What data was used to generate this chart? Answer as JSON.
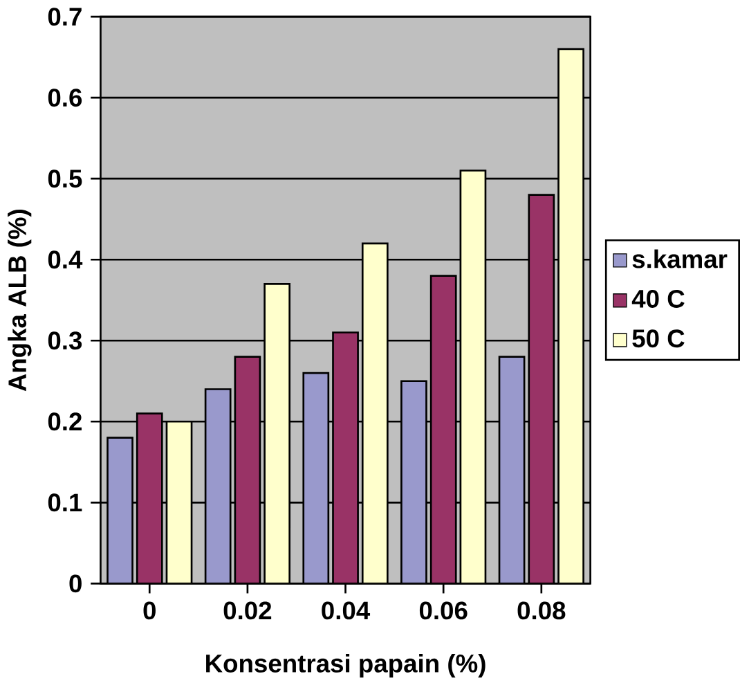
{
  "chart_data": {
    "type": "bar",
    "xlabel": "Konsentrasi papain (%)",
    "ylabel": "Angka ALB (%)",
    "categories": [
      "0",
      "0.02",
      "0.04",
      "0.06",
      "0.08"
    ],
    "series": [
      {
        "name": "s.kamar",
        "color": "#9999cc",
        "values": [
          0.18,
          0.24,
          0.26,
          0.25,
          0.28
        ]
      },
      {
        "name": "40 C",
        "color": "#993366",
        "values": [
          0.21,
          0.28,
          0.31,
          0.38,
          0.48
        ]
      },
      {
        "name": "50 C",
        "color": "#ffffcc",
        "values": [
          0.2,
          0.37,
          0.42,
          0.51,
          0.66
        ]
      }
    ],
    "ylim": [
      0,
      0.7
    ],
    "yticks": [
      0,
      0.1,
      0.2,
      0.3,
      0.4,
      0.5,
      0.6,
      0.7
    ],
    "grid": "y",
    "legend": "right"
  }
}
